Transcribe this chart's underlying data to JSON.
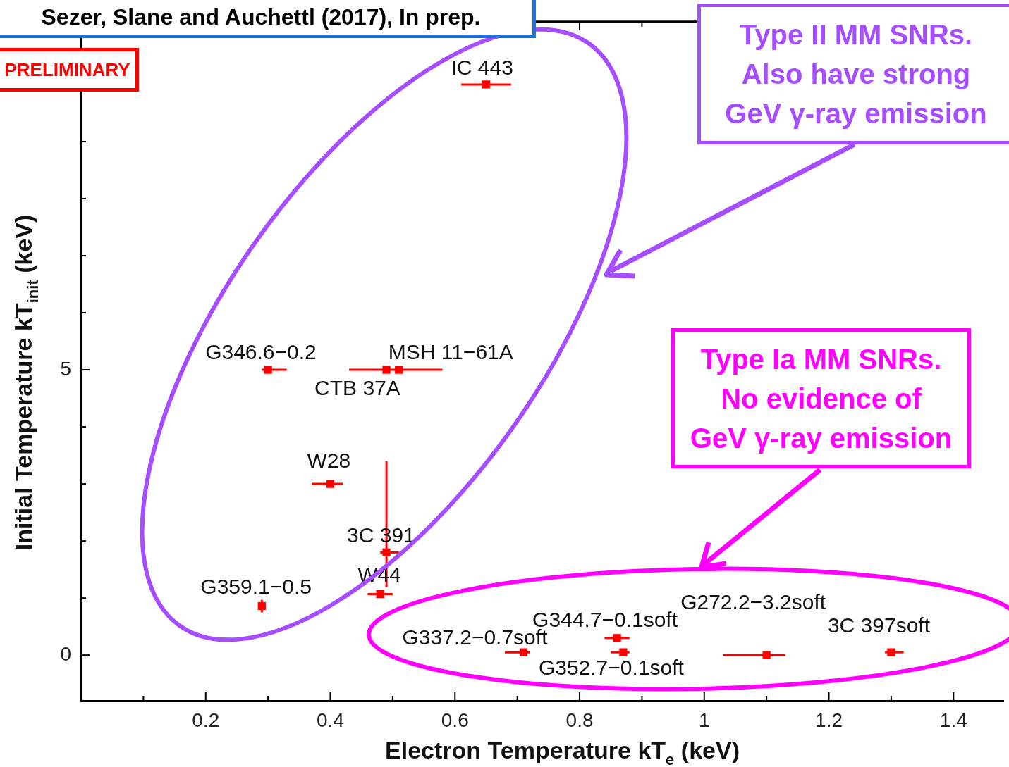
{
  "chart_data": {
    "type": "scatter",
    "xlabel": "Electron Temperature kT$_{e}$ (keV)",
    "ylabel": "Initial Temperature kT$_{init}$ (keV)",
    "marker": "square",
    "xlim": [
      0,
      1.48
    ],
    "ylim": [
      -0.8,
      11.1
    ],
    "xticks": [
      {
        "value": 0.1,
        "label": null
      },
      0.2,
      {
        "value": 0.3,
        "label": null
      },
      0.4,
      {
        "value": 0.5,
        "label": null
      },
      0.6,
      {
        "value": 0.7,
        "label": null
      },
      0.8,
      {
        "value": 0.9,
        "label": null
      },
      1,
      {
        "value": 1.1,
        "label": null
      },
      1.2,
      {
        "value": 1.3,
        "label": null
      },
      1.4
    ],
    "yticks": [
      0,
      {
        "value": 1,
        "label": null
      },
      {
        "value": 2,
        "label": null
      },
      {
        "value": 3,
        "label": null
      },
      {
        "value": 4,
        "label": null
      },
      5,
      {
        "value": 6,
        "label": null
      },
      {
        "value": 7,
        "label": null
      },
      {
        "value": 8,
        "label": null
      },
      {
        "value": 9,
        "label": null
      },
      {
        "value": 10,
        "label": null
      },
      {
        "value": 11,
        "label": null
      }
    ],
    "series": [
      {
        "color": "#ff0000",
        "x": [
          0.65,
          0.3,
          0.49,
          0.51,
          0.4,
          0.49,
          0.48,
          0.29,
          0.71,
          0.86,
          0.87,
          1.1,
          1.3
        ],
        "values": [
          10.0,
          5.0,
          5.0,
          5.0,
          3.0,
          1.8,
          1.07,
          0.86,
          0.05,
          0.3,
          0.05,
          0.0,
          0.05
        ],
        "errors": [
          null,
          null,
          null,
          null,
          null,
          [
            1.19,
            3.4
          ],
          null,
          [
            0.75,
            0.97
          ],
          null,
          null,
          null,
          null,
          null
        ],
        "xerrors": [
          [
            0.61,
            0.69
          ],
          [
            0.29,
            0.33
          ],
          [
            0.43,
            0.5
          ],
          [
            0.5,
            0.58
          ],
          [
            0.37,
            0.42
          ],
          [
            0.48,
            0.51
          ],
          [
            0.46,
            0.5
          ],
          null,
          [
            0.68,
            0.72
          ],
          [
            0.84,
            0.88
          ],
          [
            0.85,
            0.88
          ],
          [
            1.03,
            1.13
          ],
          [
            1.29,
            1.32
          ]
        ]
      }
    ],
    "annotations": [
      "Sezer, Slane and Auchettl (2017), In prep.",
      "PRELIMINARY",
      "Type II MM SNRs.\nAlso have strong\nGeV γ-ray emission",
      "Type Ia MM SNRs.\nNo evidence of\nGeV γ-ray emission",
      {
        "text": "IC 443",
        "x": 0.65,
        "y": 10.0
      },
      {
        "text": "G346.6−0.2",
        "x": 0.3,
        "y": 5.0
      },
      {
        "text": "CTB 37A",
        "x": 0.49,
        "y": 5.0
      },
      {
        "text": "MSH 11−61A",
        "x": 0.51,
        "y": 5.0
      },
      {
        "text": "W28",
        "x": 0.4,
        "y": 3.0
      },
      {
        "text": "3C 391",
        "x": 0.49,
        "y": 1.8
      },
      {
        "text": "W44",
        "x": 0.48,
        "y": 1.07
      },
      {
        "text": "G359.1−0.5",
        "x": 0.29,
        "y": 0.86
      },
      {
        "text": "G337.2−0.7soft",
        "x": 0.71,
        "y": 0.05
      },
      {
        "text": "G344.7−0.1soft",
        "x": 0.86,
        "y": 0.3
      },
      {
        "text": "G352.7−0.1soft",
        "x": 0.87,
        "y": 0.05
      },
      {
        "text": "G272.2−3.2soft",
        "x": 1.1,
        "y": 0.0
      },
      {
        "text": "3C 397soft",
        "x": 1.3,
        "y": 0.05
      }
    ]
  }
}
